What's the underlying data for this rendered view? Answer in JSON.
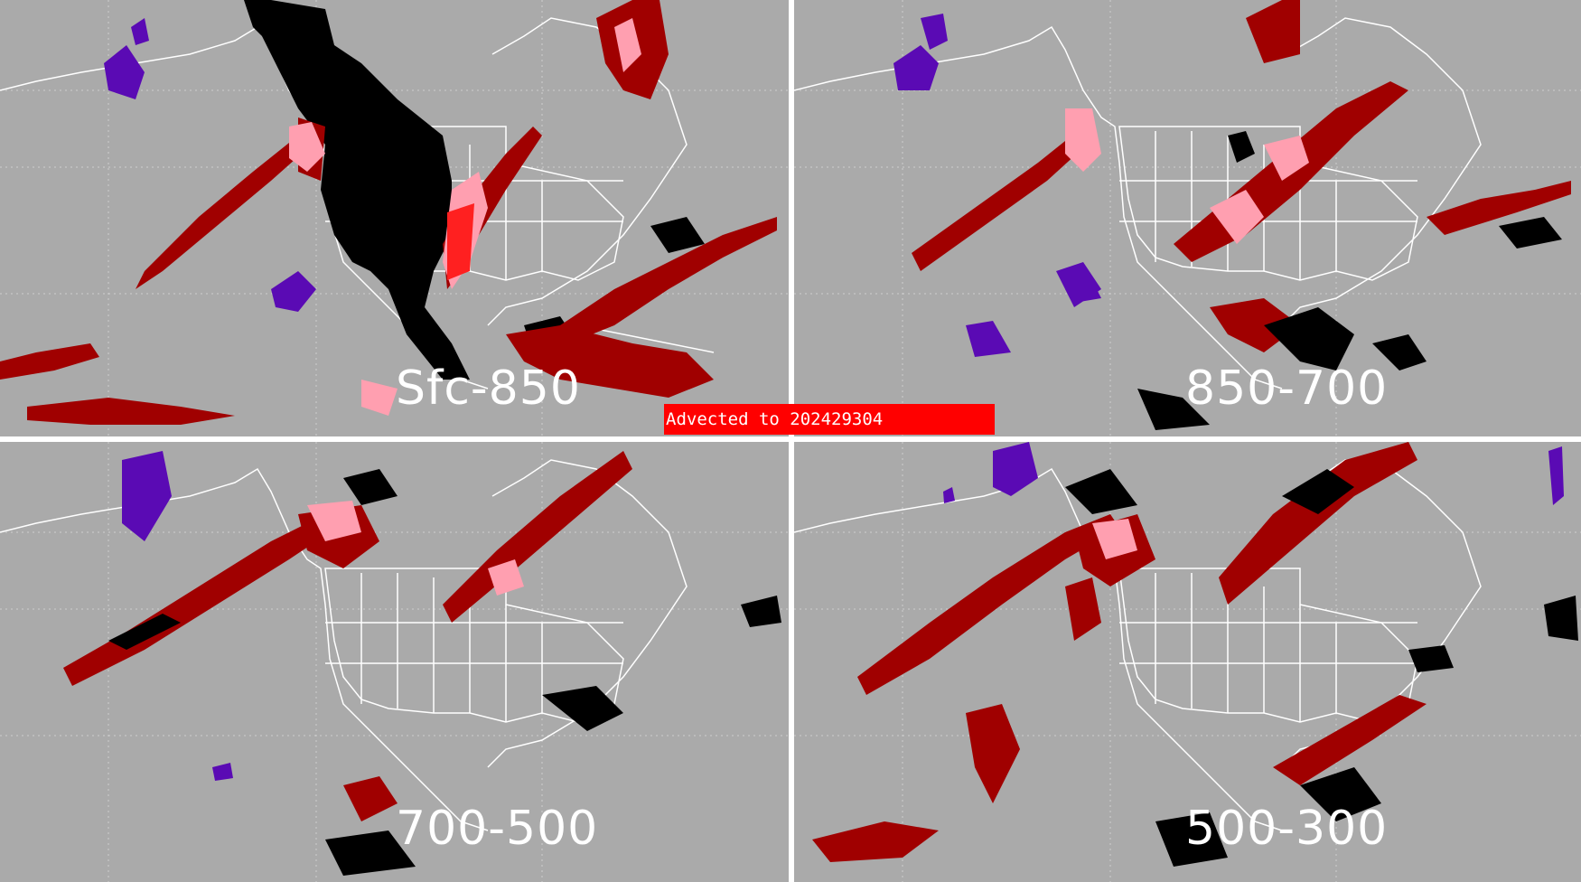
{
  "banner": {
    "text": "Advected to  202429304",
    "color": "#ff0000"
  },
  "panels": [
    {
      "id": "tl",
      "layer_label": "Sfc-850"
    },
    {
      "id": "tr",
      "layer_label": "850-700"
    },
    {
      "id": "bl",
      "layer_label": "700-500"
    },
    {
      "id": "br",
      "layer_label": "500-300"
    }
  ],
  "colors": {
    "background": "#aaaaaa",
    "coastline": "#ffffff",
    "dark_red": "#a00000",
    "pink": "#ff9fb0",
    "bright_red": "#ff2020",
    "black": "#000000",
    "purple": "#5a0ab4"
  }
}
